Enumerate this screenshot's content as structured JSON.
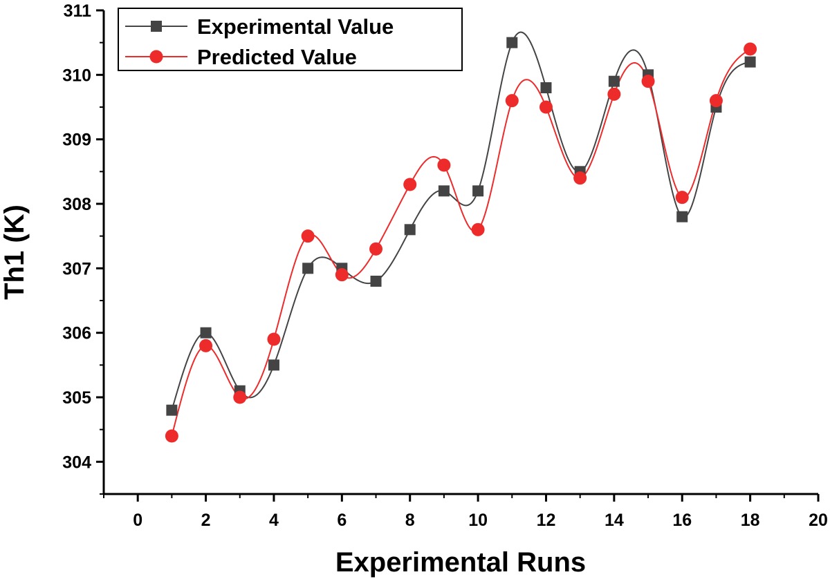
{
  "chart_data": {
    "type": "line",
    "title": "",
    "xlabel": "Experimental Runs",
    "ylabel": "Th1 (K)",
    "xlim": [
      -1,
      20
    ],
    "ylim": [
      303.5,
      311
    ],
    "xticks": [
      0,
      2,
      4,
      6,
      8,
      10,
      12,
      14,
      16,
      18,
      20
    ],
    "yticks": [
      304,
      305,
      306,
      307,
      308,
      309,
      310,
      311
    ],
    "x": [
      1,
      2,
      3,
      4,
      5,
      6,
      7,
      8,
      9,
      10,
      11,
      12,
      13,
      14,
      15,
      16,
      17,
      18
    ],
    "series": [
      {
        "name": "Experimental Value",
        "marker": "square",
        "color": "#444444",
        "values": [
          304.8,
          306.0,
          305.1,
          305.5,
          307.0,
          307.0,
          306.8,
          307.6,
          308.2,
          308.2,
          310.5,
          309.8,
          308.5,
          309.9,
          310.0,
          307.8,
          309.5,
          310.2
        ]
      },
      {
        "name": "Predicted Value",
        "marker": "circle",
        "color": "#ee2b2b",
        "values": [
          304.4,
          305.8,
          305.0,
          305.9,
          307.5,
          306.9,
          307.3,
          308.3,
          308.6,
          307.6,
          309.6,
          309.5,
          308.4,
          309.7,
          309.9,
          308.1,
          309.6,
          310.4
        ]
      }
    ],
    "grid": false,
    "legend_position": "top-left"
  }
}
